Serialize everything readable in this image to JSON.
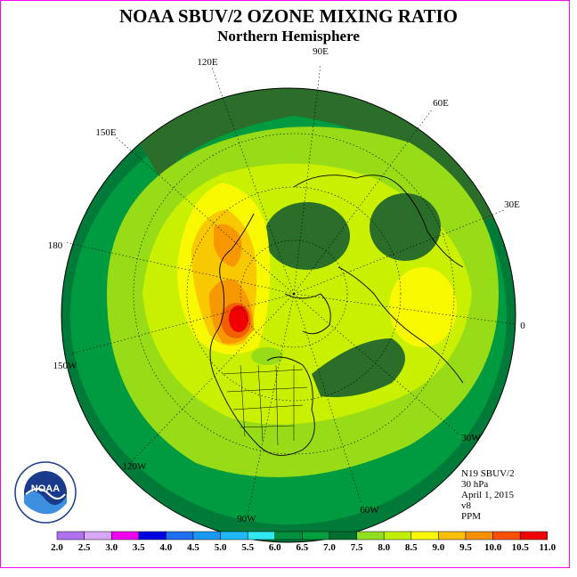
{
  "title": "NOAA SBUV/2 OZONE MIXING RATIO",
  "subtitle": "Northern Hemisphere",
  "info": {
    "satellite": "N19 SBUV/2",
    "level": "30 hPa",
    "date": "April 1, 2015",
    "version": "v8",
    "units": "PPM"
  },
  "logo_text": "NOAA",
  "longitude_labels": [
    "90E",
    "60E",
    "30E",
    "0",
    "30W",
    "60W",
    "90W",
    "120W",
    "150W",
    "180",
    "150E",
    "120E"
  ],
  "colorbar": {
    "labels": [
      "2.0",
      "2.5",
      "3.0",
      "3.5",
      "4.0",
      "4.5",
      "5.0",
      "5.5",
      "6.0",
      "6.5",
      "7.0",
      "7.5",
      "8.0",
      "8.5",
      "9.0",
      "9.5",
      "10.0",
      "10.5",
      "11.0"
    ],
    "colors": [
      "#b070f0",
      "#d8a8f8",
      "#f000f0",
      "#0000e0",
      "#1e70f0",
      "#1898f0",
      "#20b8f8",
      "#30e8f0",
      "#009040",
      "#00a040",
      "#007030",
      "#90e020",
      "#c0f000",
      "#f8f800",
      "#f8c000",
      "#f89000",
      "#f85000",
      "#f00000",
      "#804020"
    ]
  },
  "legend_colors": {
    "c6_0": "#007a38",
    "c6_5": "#009a40",
    "c7_0": "#2a6e2a",
    "c7_5": "#98dc18",
    "c8_0": "#c8f000",
    "c8_5": "#f8f800",
    "c9_0": "#f8c800",
    "c9_5": "#f89800",
    "c10_0": "#f06000",
    "c10_5": "#f00000"
  }
}
